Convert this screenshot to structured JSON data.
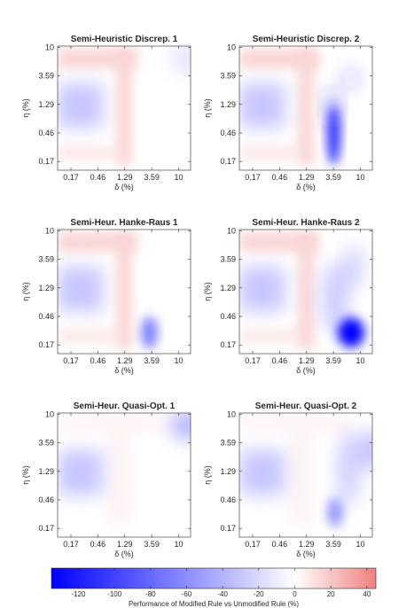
{
  "chart_data": {
    "type": "heatmap",
    "x_ticks": [
      "0.17",
      "0.46",
      "1.29",
      "3.59",
      "10"
    ],
    "y_ticks": [
      "10",
      "3.59",
      "1.29",
      "0.46",
      "0.17"
    ],
    "xlabel": "δ (%)",
    "ylabel": "η (%)",
    "colorbar": {
      "label": "Performance of Modified Rule vs Unmodified Rule (%)",
      "ticks": [
        "-120",
        "-100",
        "-80",
        "-60",
        "-40",
        "-20",
        "0",
        "20",
        "40"
      ],
      "range": [
        -135,
        45
      ],
      "colors": {
        "min": "#0000ff",
        "mid": "#ffffff",
        "max": "#f08080"
      }
    },
    "panels": [
      {
        "title": "Semi-Heuristic Discrep. 1",
        "features": [
          {
            "kind": "red-band",
            "value": 15
          },
          {
            "kind": "blue-core",
            "value": -30
          },
          {
            "kind": "blue-corner",
            "value": -15
          }
        ]
      },
      {
        "title": "Semi-Heuristic Discrep. 2",
        "features": [
          {
            "kind": "red-band",
            "value": 15
          },
          {
            "kind": "blue-core",
            "value": -30
          },
          {
            "kind": "blue-streak",
            "value": -110
          }
        ]
      },
      {
        "title": "Semi-Heur. Hanke-Raus 1",
        "features": [
          {
            "kind": "red-band",
            "value": 15
          },
          {
            "kind": "blue-core",
            "value": -30
          },
          {
            "kind": "blue-spot",
            "value": -70
          }
        ]
      },
      {
        "title": "Semi-Heur. Hanke-Raus 2",
        "features": [
          {
            "kind": "red-band",
            "value": 15
          },
          {
            "kind": "blue-core",
            "value": -30
          },
          {
            "kind": "blue-blob",
            "value": -135
          }
        ]
      },
      {
        "title": "Semi-Heur. Quasi-Opt. 1",
        "features": [
          {
            "kind": "faint-red",
            "value": 5
          },
          {
            "kind": "blue-core",
            "value": -30
          },
          {
            "kind": "blue-corner",
            "value": -40
          }
        ]
      },
      {
        "title": "Semi-Heur. Quasi-Opt. 2",
        "features": [
          {
            "kind": "faint-red",
            "value": 5
          },
          {
            "kind": "blue-core",
            "value": -30
          },
          {
            "kind": "blue-diagonal",
            "value": -55
          }
        ]
      }
    ]
  }
}
